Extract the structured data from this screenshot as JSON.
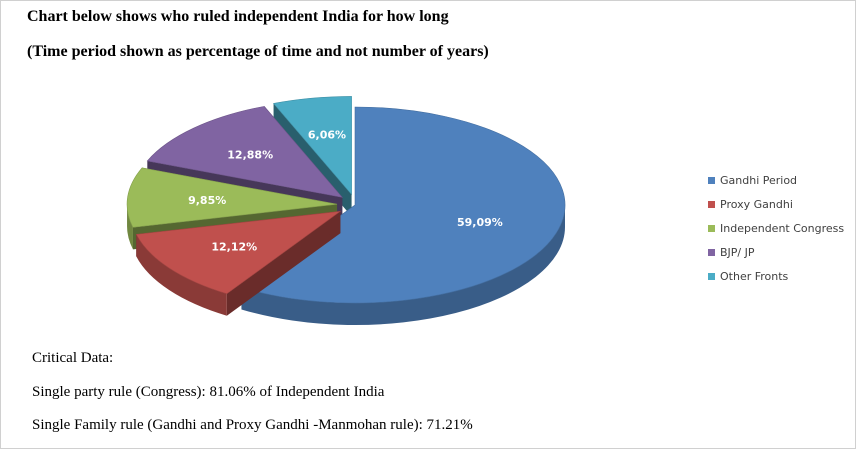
{
  "heading": {
    "line1": "Chart below shows who ruled independent India for how long",
    "line2": "(Time period shown as percentage of time and not number of years)"
  },
  "chart_data": {
    "type": "pie",
    "variant": "3d-exploded",
    "categories": [
      "Gandhi Period",
      "Proxy Gandhi",
      "Independent Congress",
      "BJP/ JP",
      "Other Fronts"
    ],
    "values": [
      59.09,
      12.12,
      9.85,
      12.88,
      6.06
    ],
    "data_labels": [
      "59,09%",
      "12,12%",
      "9,85%",
      "12,88%",
      "6,06%"
    ],
    "colors": [
      "#4f81bd",
      "#c0504d",
      "#9bbb59",
      "#8064a2",
      "#4bacc6"
    ],
    "legend_position": "right"
  },
  "notes": {
    "heading": "Critical Data:",
    "line1": "Single party rule (Congress): 81.06% of Independent India",
    "line2": "Single Family rule (Gandhi and Proxy Gandhi -Manmohan rule): 71.21%"
  }
}
